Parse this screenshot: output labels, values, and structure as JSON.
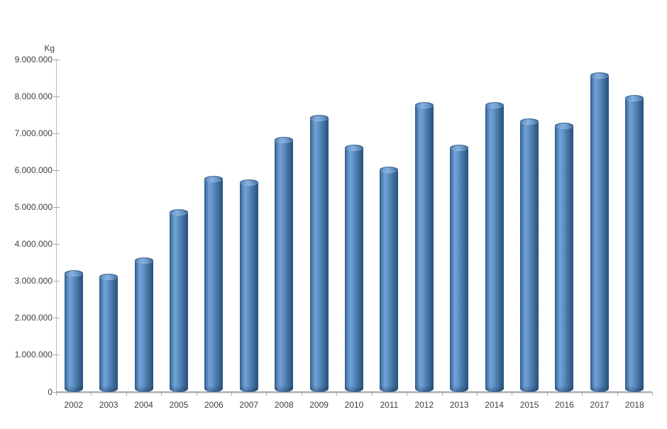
{
  "chart_data": {
    "type": "bar",
    "bar_style": "cylinder-3d",
    "title": "",
    "xlabel": "",
    "ylabel": "Kg",
    "categories": [
      "2002",
      "2003",
      "2004",
      "2005",
      "2006",
      "2007",
      "2008",
      "2009",
      "2010",
      "2011",
      "2012",
      "2013",
      "2014",
      "2015",
      "2016",
      "2017",
      "2018"
    ],
    "values": [
      3300000,
      3200000,
      3650000,
      4950000,
      5850000,
      5750000,
      6900000,
      7500000,
      6700000,
      6100000,
      7850000,
      6700000,
      7850000,
      7400000,
      7300000,
      8650000,
      8050000
    ],
    "ylim": [
      0,
      9000000
    ],
    "ytick_step": 1000000,
    "ytick_labels": [
      "0",
      "1.000.000",
      "2.000.000",
      "3.000.000",
      "4.000.000",
      "5.000.000",
      "6.000.000",
      "7.000.000",
      "8.000.000",
      "9.000.000"
    ],
    "grid": false,
    "legend": false
  },
  "colors": {
    "background": "#ffffff",
    "bar_main": "#4f81bd",
    "bar_highlight": "#74a1d6",
    "bar_dark_edge": "#27527e",
    "axis_line": "#bfbfbf",
    "baseline": "#8f989f",
    "tick": "#a6a6a6",
    "label_text": "#3f3f3f"
  }
}
